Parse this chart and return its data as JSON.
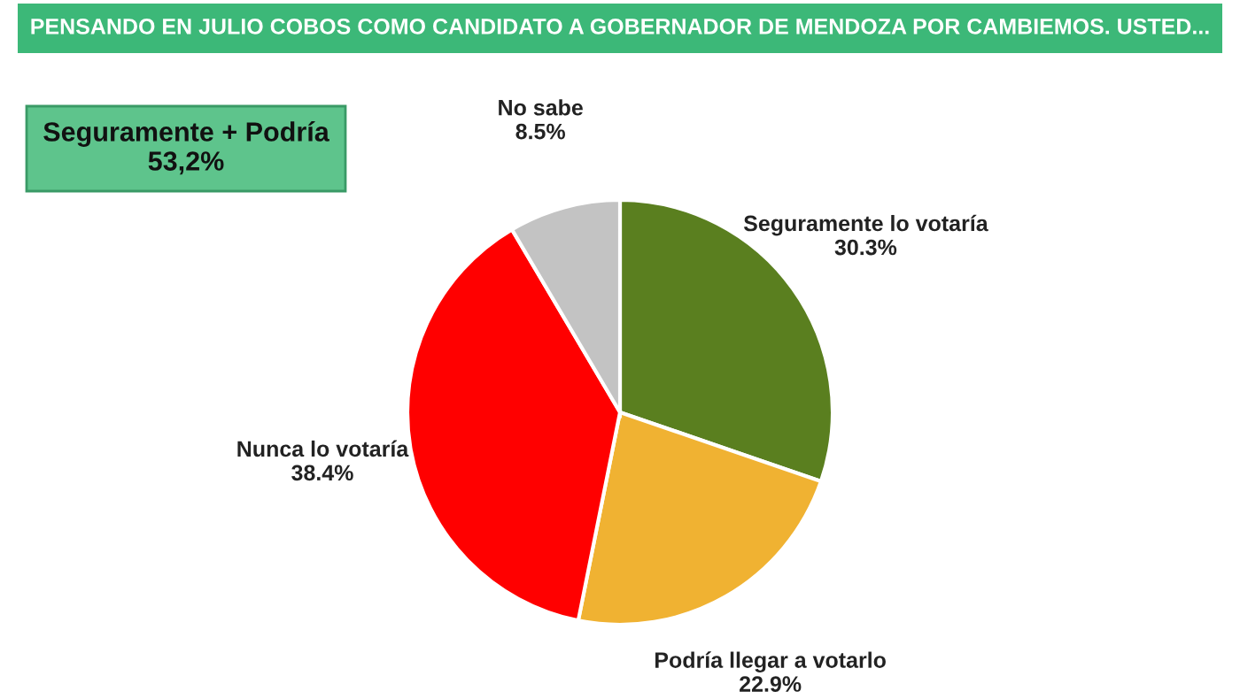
{
  "chart_data": {
    "type": "pie",
    "title": "PENSANDO EN JULIO COBOS COMO CANDIDATO A GOBERNADOR DE MENDOZA POR CAMBIEMOS. USTED...",
    "categories": [
      "Seguramente lo votaría",
      "Podría llegar a votarlo",
      "Nunca lo votaría",
      "No sabe"
    ],
    "values": [
      30.3,
      22.9,
      38.4,
      8.5
    ],
    "value_labels": [
      "30.3%",
      "22.9%",
      "38.4%",
      "8.5%"
    ],
    "colors": [
      "#5a7f1f",
      "#f0b232",
      "#ff0000",
      "#c3c3c3"
    ],
    "annotations": [
      "Seguramente + Podría\n53,2%"
    ],
    "legend": false
  }
}
